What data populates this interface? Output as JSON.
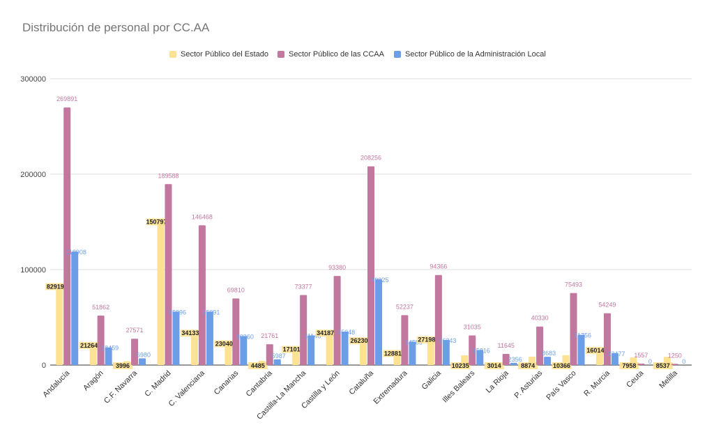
{
  "chart_data": {
    "type": "bar",
    "title": "Distribución de personal por CC.AA",
    "xlabel": "",
    "ylabel": "",
    "ylim": [
      0,
      300000
    ],
    "yticks": [
      0,
      100000,
      200000,
      300000
    ],
    "grid": true,
    "legend_position": "top",
    "categories": [
      "Andalucía",
      "Aragón",
      "C.F. Navarra",
      "C. Madrid",
      "C. Valenciana",
      "Canarias",
      "Cantabria",
      "Castilla-La Mancha",
      "Castilla y León",
      "Cataluña",
      "Extremadura",
      "Galicia",
      "Illes Balears",
      "La Rioja",
      "P. Asturias",
      "País Vasco",
      "R. Murcia",
      "Ceuta",
      "Melilla"
    ],
    "series": [
      {
        "name": "Sector Público del Estado",
        "color": "#fde293",
        "values": [
          82919,
          21264,
          3996,
          150797,
          34133,
          23040,
          4485,
          17101,
          34187,
          26230,
          12881,
          27198,
          10235,
          3014,
          8874,
          10366,
          16014,
          7958,
          8537
        ]
      },
      {
        "name": "Sector Público de las CCAA",
        "color": "#c2779f",
        "values": [
          269891,
          51862,
          27571,
          189588,
          146468,
          69810,
          21761,
          73377,
          93380,
          208256,
          52237,
          94366,
          31035,
          11645,
          40330,
          75493,
          54249,
          1557,
          1250
        ]
      },
      {
        "name": "Sector Público de la Administración Local",
        "color": "#6c9ee8",
        "values": [
          118908,
          18459,
          6980,
          55996,
          55991,
          30360,
          5987,
          31146,
          35048,
          89925,
          24588,
          26343,
          15816,
          2356,
          8683,
          31756,
          12477,
          0,
          0
        ]
      }
    ]
  }
}
